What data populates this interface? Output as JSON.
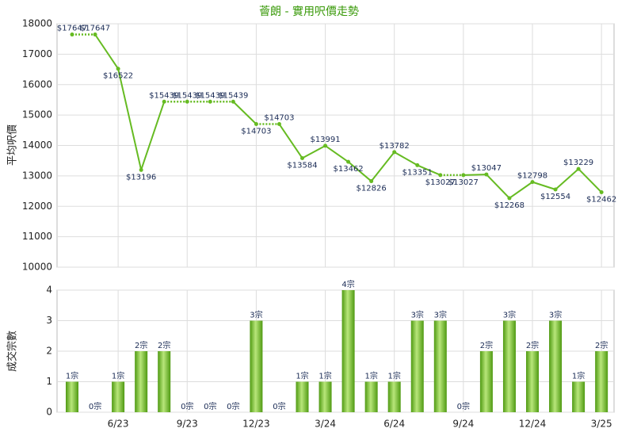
{
  "chart_data": [
    {
      "type": "line",
      "title": "薈朗 - 實用呎價走勢",
      "ylabel": "平均呎價",
      "color": "#66bb22",
      "values": [
        17647,
        17647,
        16522,
        13196,
        15439,
        15439,
        15439,
        15439,
        14703,
        14703,
        13584,
        13991,
        13462,
        12826,
        13782,
        13351,
        13027,
        13027,
        13047,
        12268,
        12798,
        12554,
        13229,
        12462
      ],
      "value_labels": [
        "$17647",
        "$17647",
        "$16522",
        "$13196",
        "$15439",
        "$15439",
        "$15439",
        "$15439",
        "$14703",
        "$14703",
        "$13584",
        "$13991",
        "$13462",
        "$12826",
        "$13782",
        "$13351",
        "$13027",
        "$13027",
        "$13047",
        "$12268",
        "$12798",
        "$12554",
        "$13229",
        "$12462"
      ],
      "ylim": [
        10000,
        18000
      ],
      "yticks": [
        10000,
        11000,
        12000,
        13000,
        14000,
        15000,
        16000,
        17000,
        18000
      ],
      "grid": true
    },
    {
      "type": "bar",
      "ylabel": "成交宗數",
      "color": "#66bb22",
      "categories": [
        null,
        null,
        "6/23",
        null,
        null,
        "9/23",
        null,
        null,
        "12/23",
        null,
        null,
        "3/24",
        null,
        null,
        "6/24",
        null,
        null,
        "9/24",
        null,
        null,
        "12/24",
        null,
        null,
        "3/25"
      ],
      "values": [
        1,
        0,
        1,
        2,
        2,
        0,
        0,
        0,
        3,
        0,
        1,
        1,
        4,
        1,
        1,
        3,
        3,
        0,
        2,
        3,
        2,
        3,
        1,
        2
      ],
      "value_labels": [
        "1宗",
        "0宗",
        "1宗",
        "2宗",
        "2宗",
        "0宗",
        "0宗",
        "0宗",
        "3宗",
        "0宗",
        "1宗",
        "1宗",
        "4宗",
        "1宗",
        "1宗",
        "3宗",
        "3宗",
        "0宗",
        "2宗",
        "3宗",
        "2宗",
        "3宗",
        "1宗",
        "2宗"
      ],
      "ylim": [
        0,
        4
      ],
      "yticks": [
        0,
        1,
        2,
        3,
        4
      ],
      "grid": true
    }
  ]
}
